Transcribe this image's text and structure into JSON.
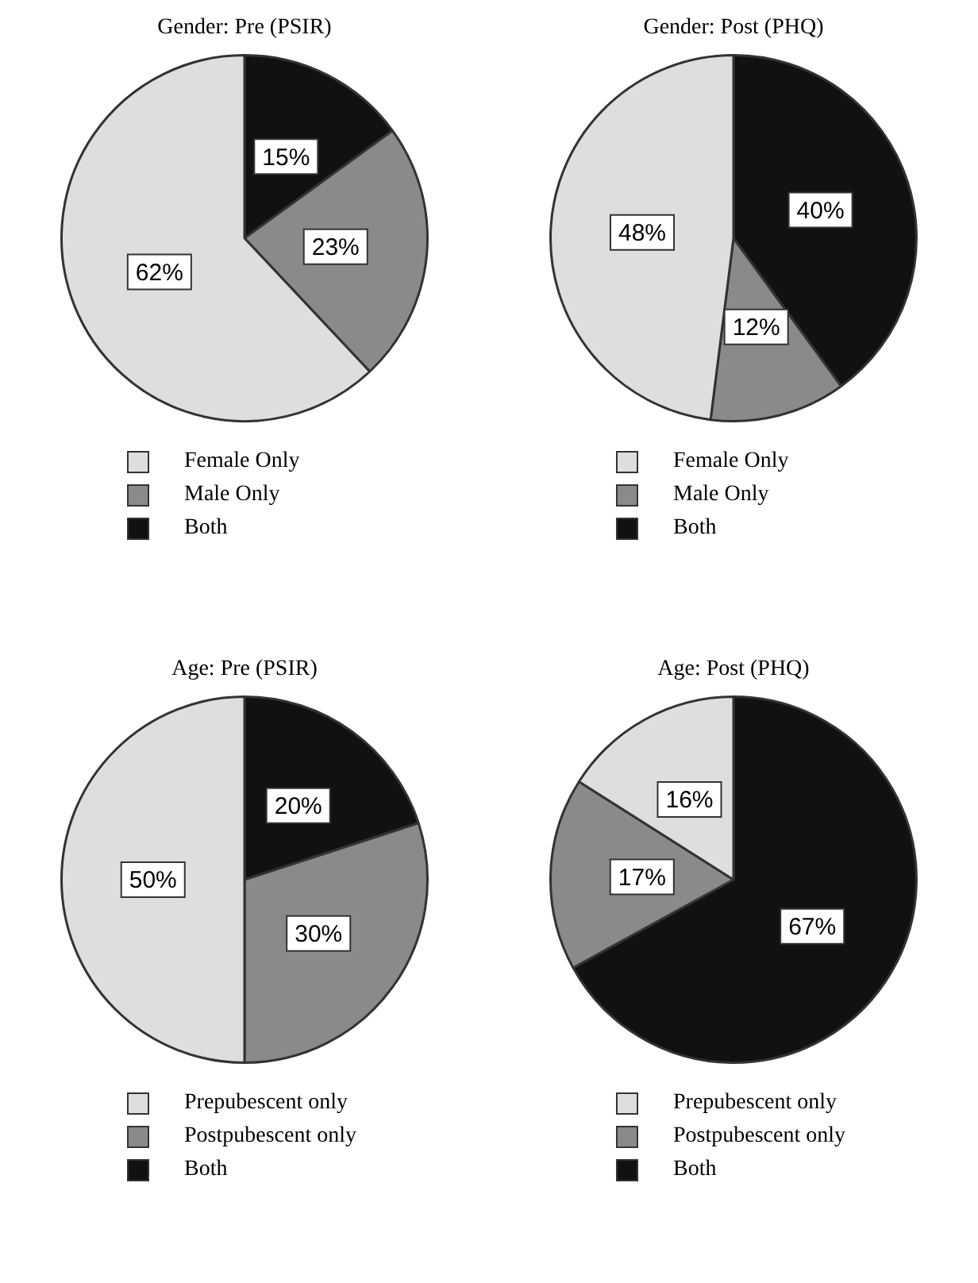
{
  "chart_data": [
    {
      "type": "pie",
      "title": "Gender: Pre (PSIR)",
      "categories": [
        "Both",
        "Male Only",
        "Female Only"
      ],
      "values": [
        15,
        23,
        62
      ],
      "value_labels": [
        "15%",
        "23%",
        "62%"
      ],
      "colors": [
        "#111111",
        "#8a8a8a",
        "#dedede"
      ],
      "legend": "bottom"
    },
    {
      "type": "pie",
      "title": "Gender: Post (PHQ)",
      "categories": [
        "Both",
        "Male Only",
        "Female Only"
      ],
      "values": [
        40,
        12,
        48
      ],
      "value_labels": [
        "40%",
        "12%",
        "48%"
      ],
      "colors": [
        "#111111",
        "#8a8a8a",
        "#dedede"
      ],
      "legend": "bottom"
    },
    {
      "type": "pie",
      "title": "Age: Pre (PSIR)",
      "categories": [
        "Both",
        "Postpubescent only",
        "Prepubescent only"
      ],
      "values": [
        20,
        30,
        50
      ],
      "value_labels": [
        "20%",
        "30%",
        "50%"
      ],
      "colors": [
        "#111111",
        "#8a8a8a",
        "#dedede"
      ],
      "legend": "bottom"
    },
    {
      "type": "pie",
      "title": "Age: Post (PHQ)",
      "categories": [
        "Both",
        "Postpubescent only",
        "Prepubescent only"
      ],
      "values": [
        67,
        17,
        16
      ],
      "value_labels": [
        "67%",
        "17%",
        "16%"
      ],
      "colors": [
        "#111111",
        "#8a8a8a",
        "#dedede"
      ],
      "legend": "bottom"
    }
  ]
}
